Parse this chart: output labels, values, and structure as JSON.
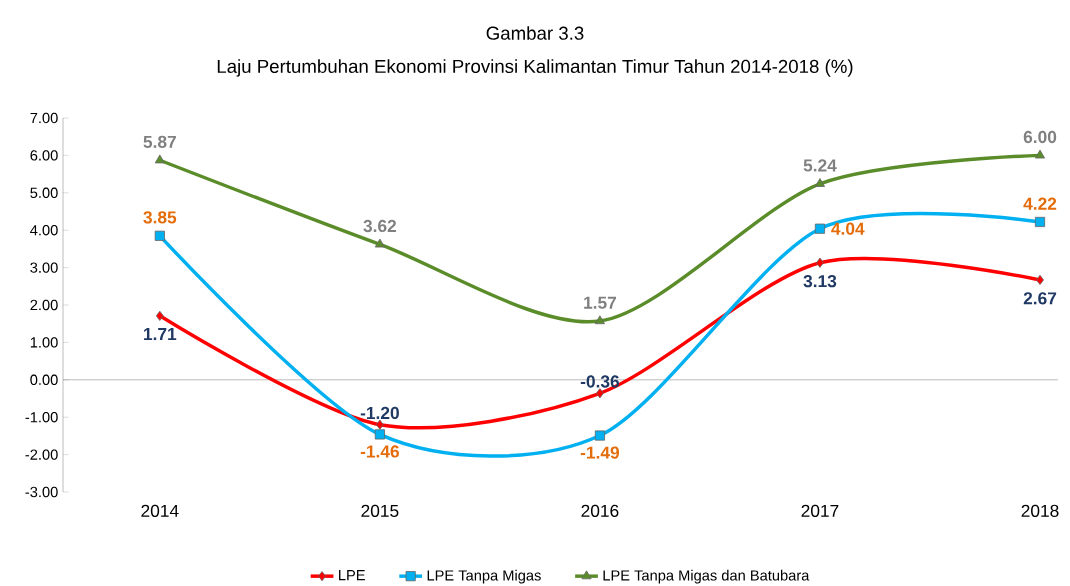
{
  "chart_data": {
    "type": "line",
    "title": "Gambar 3.3",
    "subtitle": "Laju Pertumbuhan Ekonomi Provinsi Kalimantan Timur Tahun 2014-2018 (%)",
    "categories": [
      "2014",
      "2015",
      "2016",
      "2017",
      "2018"
    ],
    "ylim": [
      -3,
      7
    ],
    "yticks": [
      {
        "value": -3,
        "label": "-3.00"
      },
      {
        "value": -2,
        "label": "-2.00"
      },
      {
        "value": -1,
        "label": "-1.00"
      },
      {
        "value": 0,
        "label": "0.00"
      },
      {
        "value": 1,
        "label": "1.00"
      },
      {
        "value": 2,
        "label": "2.00"
      },
      {
        "value": 3,
        "label": "3.00"
      },
      {
        "value": 4,
        "label": "4.00"
      },
      {
        "value": 5,
        "label": "5.00"
      },
      {
        "value": 6,
        "label": "6.00"
      },
      {
        "value": 7,
        "label": "7.00"
      }
    ],
    "legend": "bottom",
    "series": [
      {
        "name": "LPE",
        "color": "#ff0000",
        "marker": "diamond",
        "values": [
          1.71,
          -1.2,
          -0.36,
          3.13,
          2.67
        ],
        "value_labels": [
          "1.71",
          "-1.20",
          "-0.36",
          "3.13",
          "2.67"
        ]
      },
      {
        "name": "LPE Tanpa Migas",
        "color": "#00b0f0",
        "marker": "square",
        "values": [
          3.85,
          -1.46,
          -1.49,
          4.04,
          4.22
        ],
        "value_labels": [
          "3.85",
          "-1.46",
          "-1.49",
          "4.04",
          "4.22"
        ]
      },
      {
        "name": "LPE Tanpa Migas dan Batubara",
        "color": "#5b8c2a",
        "marker": "triangle",
        "values": [
          5.87,
          3.62,
          1.57,
          5.24,
          6.0
        ],
        "value_labels": [
          "5.87",
          "3.62",
          "1.57",
          "5.24",
          "6.00"
        ]
      }
    ]
  }
}
